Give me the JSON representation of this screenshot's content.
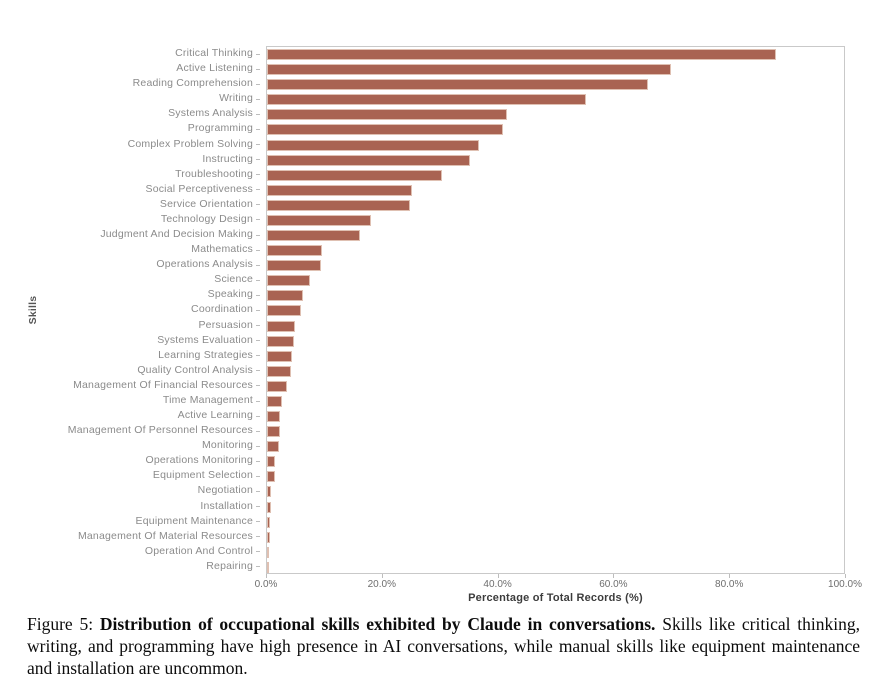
{
  "chart_data": {
    "type": "bar",
    "orientation": "horizontal",
    "title": "",
    "xlabel": "Percentage of Total Records (%)",
    "ylabel": "Skills",
    "xlim": [
      0,
      100
    ],
    "xtick_values": [
      0,
      20,
      40,
      60,
      80,
      100
    ],
    "xtick_labels": [
      "0.0%",
      "20.0%",
      "40.0%",
      "60.0%",
      "80.0%",
      "100.0%"
    ],
    "grid": false,
    "legend": "none",
    "bar_color": "#a96352",
    "bar_edge_color": "#dfc0b2",
    "categories": [
      "Critical Thinking",
      "Active Listening",
      "Reading Comprehension",
      "Writing",
      "Systems Analysis",
      "Programming",
      "Complex Problem Solving",
      "Instructing",
      "Troubleshooting",
      "Social Perceptiveness",
      "Service Orientation",
      "Technology Design",
      "Judgment And Decision Making",
      "Mathematics",
      "Operations Analysis",
      "Science",
      "Speaking",
      "Coordination",
      "Persuasion",
      "Systems Evaluation",
      "Learning Strategies",
      "Quality Control Analysis",
      "Management Of Financial Resources",
      "Time Management",
      "Active Learning",
      "Management Of Personnel Resources",
      "Monitoring",
      "Operations Monitoring",
      "Equipment Selection",
      "Negotiation",
      "Installation",
      "Equipment Maintenance",
      "Management Of Material Resources",
      "Operation And Control",
      "Repairing"
    ],
    "values": [
      88.2,
      70.0,
      66.1,
      55.2,
      41.6,
      40.9,
      36.8,
      35.2,
      30.4,
      25.2,
      24.8,
      18.1,
      16.2,
      9.6,
      9.3,
      7.4,
      6.2,
      5.9,
      4.8,
      4.7,
      4.3,
      4.1,
      3.5,
      2.6,
      2.3,
      2.2,
      2.1,
      1.4,
      1.3,
      0.7,
      0.7,
      0.5,
      0.5,
      0.4,
      0.2
    ]
  },
  "caption": {
    "label": "Figure 5: ",
    "bold": "Distribution of occupational skills exhibited by Claude in conversations.",
    "rest": " Skills like critical thinking, writing, and programming have high presence in AI conversations, while manual skills like equipment maintenance and installation are uncommon."
  }
}
